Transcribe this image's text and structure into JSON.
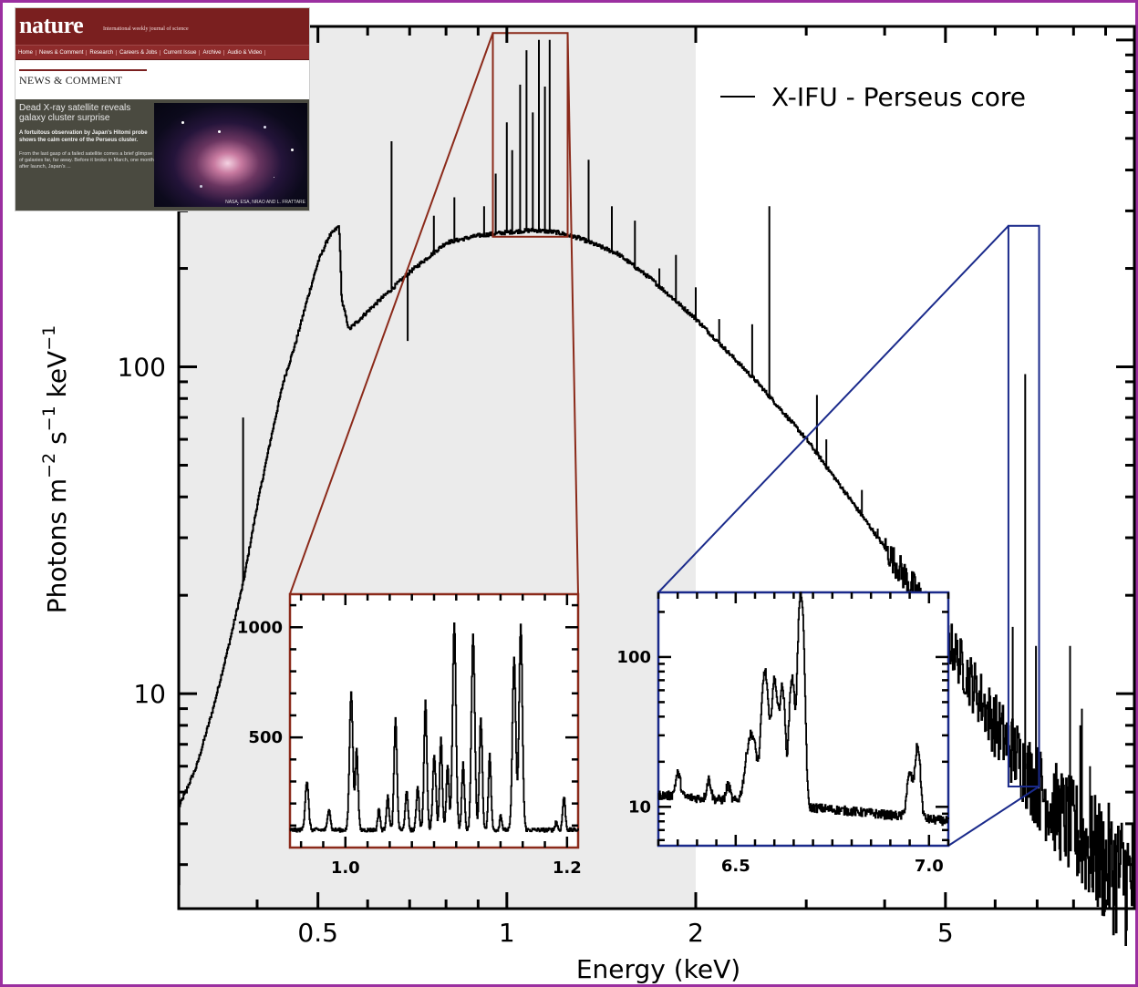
{
  "chart_data": {
    "type": "line",
    "title": "",
    "xlabel": "Energy (keV)",
    "ylabel": "Photons m−2 s−1 keV−1",
    "ylabel_parts": {
      "main": "Photons m",
      "e1": "−2",
      "mid1": " s",
      "e2": "−1",
      "mid2": " keV",
      "e3": "−1"
    },
    "x_scale": "log",
    "y_scale": "log",
    "xlim": [
      0.3,
      10.0
    ],
    "ylim": [
      2.2,
      1100
    ],
    "x_ticklabels": [
      "0.5",
      "1",
      "2",
      "5"
    ],
    "x_tickvalues": [
      0.5,
      1,
      2,
      5
    ],
    "y_ticklabels": [
      "10",
      "100"
    ],
    "y_tickvalues": [
      10,
      100
    ],
    "shaded_band": [
      0.3,
      2.0
    ],
    "grid": false,
    "legend": {
      "position": "top-right",
      "entries": [
        "X-IFU - Perseus core"
      ]
    },
    "series": [
      {
        "name": "X-IFU - Perseus core",
        "continuum": [
          [
            0.3,
            4.5
          ],
          [
            0.32,
            6.0
          ],
          [
            0.34,
            9.0
          ],
          [
            0.36,
            14.0
          ],
          [
            0.38,
            22.0
          ],
          [
            0.4,
            38.0
          ],
          [
            0.42,
            60.0
          ],
          [
            0.44,
            90.0
          ],
          [
            0.46,
            118.0
          ],
          [
            0.48,
            160.0
          ],
          [
            0.5,
            210.0
          ],
          [
            0.52,
            250.0
          ],
          [
            0.54,
            270.0
          ],
          [
            0.545,
            160.0
          ],
          [
            0.56,
            130.0
          ],
          [
            0.6,
            148.0
          ],
          [
            0.7,
            195.0
          ],
          [
            0.8,
            240.0
          ],
          [
            0.9,
            252.0
          ],
          [
            1.0,
            258.0
          ],
          [
            1.1,
            262.0
          ],
          [
            1.2,
            258.0
          ],
          [
            1.3,
            248.0
          ],
          [
            1.5,
            222.0
          ],
          [
            1.7,
            185.0
          ],
          [
            2.0,
            140.0
          ],
          [
            2.5,
            90.0
          ],
          [
            3.0,
            60.0
          ],
          [
            3.5,
            40.0
          ],
          [
            4.0,
            28.0
          ],
          [
            5.0,
            15.0
          ],
          [
            6.0,
            8.0
          ],
          [
            7.0,
            5.2
          ],
          [
            8.0,
            3.8
          ],
          [
            9.0,
            3.0
          ],
          [
            10.0,
            2.6
          ]
        ],
        "lines": [
          {
            "x": 0.38,
            "y": 70
          },
          {
            "x": 0.655,
            "y": 490
          },
          {
            "x": 0.695,
            "y": 120
          },
          {
            "x": 0.765,
            "y": 290
          },
          {
            "x": 0.825,
            "y": 330
          },
          {
            "x": 0.92,
            "y": 310
          },
          {
            "x": 0.96,
            "y": 390
          },
          {
            "x": 1.0,
            "y": 560
          },
          {
            "x": 1.02,
            "y": 460
          },
          {
            "x": 1.05,
            "y": 730
          },
          {
            "x": 1.075,
            "y": 930
          },
          {
            "x": 1.1,
            "y": 600
          },
          {
            "x": 1.125,
            "y": 1000
          },
          {
            "x": 1.15,
            "y": 720
          },
          {
            "x": 1.17,
            "y": 1000
          },
          {
            "x": 1.35,
            "y": 430
          },
          {
            "x": 1.47,
            "y": 310
          },
          {
            "x": 1.6,
            "y": 280
          },
          {
            "x": 1.75,
            "y": 200
          },
          {
            "x": 1.86,
            "y": 220
          },
          {
            "x": 2.0,
            "y": 175
          },
          {
            "x": 2.18,
            "y": 140
          },
          {
            "x": 2.46,
            "y": 135
          },
          {
            "x": 2.62,
            "y": 310
          },
          {
            "x": 3.12,
            "y": 82
          },
          {
            "x": 3.23,
            "y": 60
          },
          {
            "x": 3.68,
            "y": 42
          },
          {
            "x": 3.9,
            "y": 32
          },
          {
            "x": 6.4,
            "y": 16
          },
          {
            "x": 6.7,
            "y": 95
          },
          {
            "x": 6.97,
            "y": 14
          },
          {
            "x": 7.9,
            "y": 14
          },
          {
            "x": 8.2,
            "y": 8
          },
          {
            "x": 8.25,
            "y": 9
          },
          {
            "x": 8.5,
            "y": 6
          }
        ]
      }
    ],
    "zoom_boxes": [
      {
        "color": "#8b2a1a",
        "xrange": [
          0.95,
          1.25
        ],
        "yrange": [
          250,
          1050
        ]
      },
      {
        "color": "#1a2a8b",
        "xrange": [
          6.3,
          7.05
        ],
        "yrange": [
          5.2,
          270
        ]
      }
    ],
    "insets": [
      {
        "name": "inset-fe-l",
        "border_color": "#8b2a1a",
        "x_scale": "linear",
        "y_scale": "linear",
        "xlim": [
          0.95,
          1.21
        ],
        "ylim": [
          0,
          1150
        ],
        "x_ticklabels": [
          "1.0",
          "1.2"
        ],
        "x_tickvalues": [
          1.0,
          1.2
        ],
        "y_ticklabels": [
          "500",
          "1000"
        ],
        "y_tickvalues": [
          500,
          1000
        ],
        "baseline": 80,
        "peaks": [
          {
            "x": 0.965,
            "y": 300,
            "w": 0.0015
          },
          {
            "x": 0.985,
            "y": 180,
            "w": 0.0012
          },
          {
            "x": 1.005,
            "y": 700,
            "w": 0.0015
          },
          {
            "x": 1.01,
            "y": 450,
            "w": 0.0012
          },
          {
            "x": 1.03,
            "y": 180,
            "w": 0.001
          },
          {
            "x": 1.038,
            "y": 230,
            "w": 0.0012
          },
          {
            "x": 1.045,
            "y": 580,
            "w": 0.0013
          },
          {
            "x": 1.055,
            "y": 260,
            "w": 0.0012
          },
          {
            "x": 1.065,
            "y": 280,
            "w": 0.0012
          },
          {
            "x": 1.072,
            "y": 660,
            "w": 0.0013
          },
          {
            "x": 1.08,
            "y": 420,
            "w": 0.0014
          },
          {
            "x": 1.086,
            "y": 500,
            "w": 0.0012
          },
          {
            "x": 1.092,
            "y": 370,
            "w": 0.0012
          },
          {
            "x": 1.098,
            "y": 1020,
            "w": 0.0015
          },
          {
            "x": 1.106,
            "y": 380,
            "w": 0.0012
          },
          {
            "x": 1.115,
            "y": 960,
            "w": 0.0015
          },
          {
            "x": 1.122,
            "y": 580,
            "w": 0.0013
          },
          {
            "x": 1.13,
            "y": 420,
            "w": 0.0012
          },
          {
            "x": 1.14,
            "y": 150,
            "w": 0.001
          },
          {
            "x": 1.152,
            "y": 870,
            "w": 0.0015
          },
          {
            "x": 1.158,
            "y": 1010,
            "w": 0.0015
          },
          {
            "x": 1.18,
            "y": 80,
            "w": 0.001
          },
          {
            "x": 1.19,
            "y": 120,
            "w": 0.001
          },
          {
            "x": 1.197,
            "y": 230,
            "w": 0.0012
          }
        ]
      },
      {
        "name": "inset-fe-k",
        "border_color": "#1a2a8b",
        "x_scale": "linear",
        "y_scale": "log",
        "xlim": [
          6.3,
          7.05
        ],
        "ylim": [
          5.5,
          270
        ],
        "x_ticklabels": [
          "6.5",
          "7.0"
        ],
        "x_tickvalues": [
          6.5,
          7.0
        ],
        "y_ticklabels": [
          "10",
          "100"
        ],
        "y_tickvalues": [
          10,
          100
        ],
        "baseline_start": 12,
        "baseline_end": 8,
        "peaks": [
          {
            "x": 6.35,
            "y": 5,
            "w": 0.006
          },
          {
            "x": 6.43,
            "y": 4,
            "w": 0.005
          },
          {
            "x": 6.48,
            "y": 3,
            "w": 0.005
          },
          {
            "x": 6.54,
            "y": 20,
            "w": 0.012
          },
          {
            "x": 6.575,
            "y": 70,
            "w": 0.007
          },
          {
            "x": 6.6,
            "y": 60,
            "w": 0.007
          },
          {
            "x": 6.62,
            "y": 52,
            "w": 0.006
          },
          {
            "x": 6.645,
            "y": 63,
            "w": 0.006
          },
          {
            "x": 6.668,
            "y": 260,
            "w": 0.006
          },
          {
            "x": 6.95,
            "y": 8,
            "w": 0.007
          },
          {
            "x": 6.97,
            "y": 17,
            "w": 0.006
          }
        ]
      }
    ]
  },
  "thumbnail": {
    "logo": "nature",
    "tagline": "International weekly journal of science",
    "nav": [
      "Home",
      "News & Comment",
      "Research",
      "Careers & Jobs",
      "Current Issue",
      "Archive",
      "Audio & Video"
    ],
    "section": "NEWS & COMMENT",
    "headline": "Dead X-ray satellite reveals galaxy cluster surprise",
    "standfirst": "A fortuitous observation by Japan's Hitomi probe shows the calm centre of the Perseus cluster.",
    "lede": "From the last gasp of a failed satellite comes a brief glimpse of galaxies far, far away. Before it broke in March, one month after launch, Japan's ...",
    "credit": "NASA, ESA, NRAO AND L. FRATTARE"
  }
}
